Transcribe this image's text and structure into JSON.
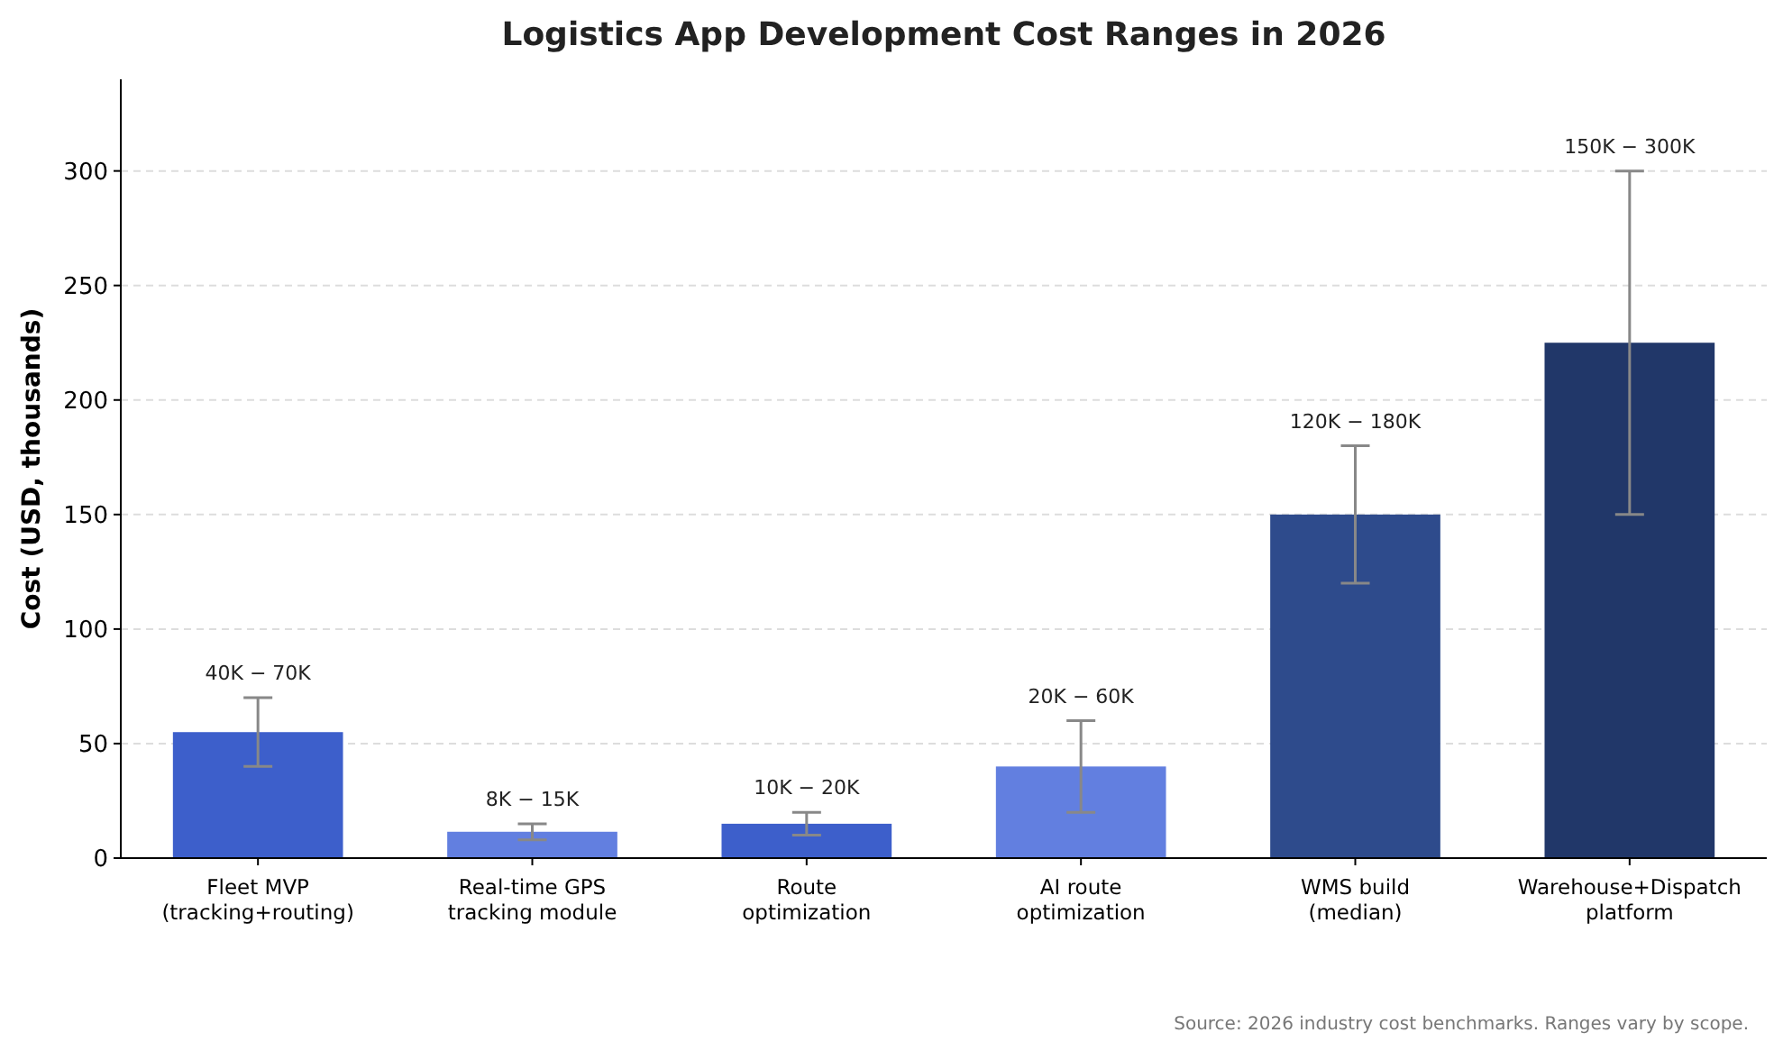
{
  "chart_data": {
    "type": "bar",
    "title": "Logistics App Development Cost Ranges in 2026",
    "ylabel": "Cost (USD, thousands)",
    "categories": [
      "Fleet MVP\n(tracking+routing)",
      "Real-time GPS\ntracking module",
      "Route\noptimization",
      "AI route\noptimization",
      "WMS build\n(median)",
      "Warehouse+Dispatch\nplatform"
    ],
    "values": [
      55,
      11.5,
      15,
      40,
      150,
      225
    ],
    "colors": [
      "#3d5fcb",
      "#627fe0",
      "#3d5fcb",
      "#627fe0",
      "#2e4b8c",
      "#213769"
    ],
    "errors": [
      [
        40,
        70
      ],
      [
        8,
        15
      ],
      [
        10,
        20
      ],
      [
        20,
        60
      ],
      [
        120,
        180
      ],
      [
        150,
        300
      ]
    ],
    "ylim": [
      0,
      340
    ],
    "yticks": [
      0,
      50,
      100,
      150,
      200,
      250,
      300
    ],
    "grid": "y",
    "annotations": [
      {
        "text": "40K − 70K",
        "x": "Fleet MVP\n(tracking+routing)",
        "y": 70
      },
      {
        "text": "8K − 15K",
        "x": "Real-time GPS\ntracking module",
        "y": 15
      },
      {
        "text": "10K − 20K",
        "x": "Route\noptimization",
        "y": 20
      },
      {
        "text": "20K − 60K",
        "x": "AI route\noptimization",
        "y": 60
      },
      {
        "text": "120K − 180K",
        "x": "WMS build\n(median)",
        "y": 180
      },
      {
        "text": "150K − 300K",
        "x": "Warehouse+Dispatch\nplatform",
        "y": 300
      },
      "Source: 2026 industry cost benchmarks. Ranges vary by scope."
    ]
  }
}
